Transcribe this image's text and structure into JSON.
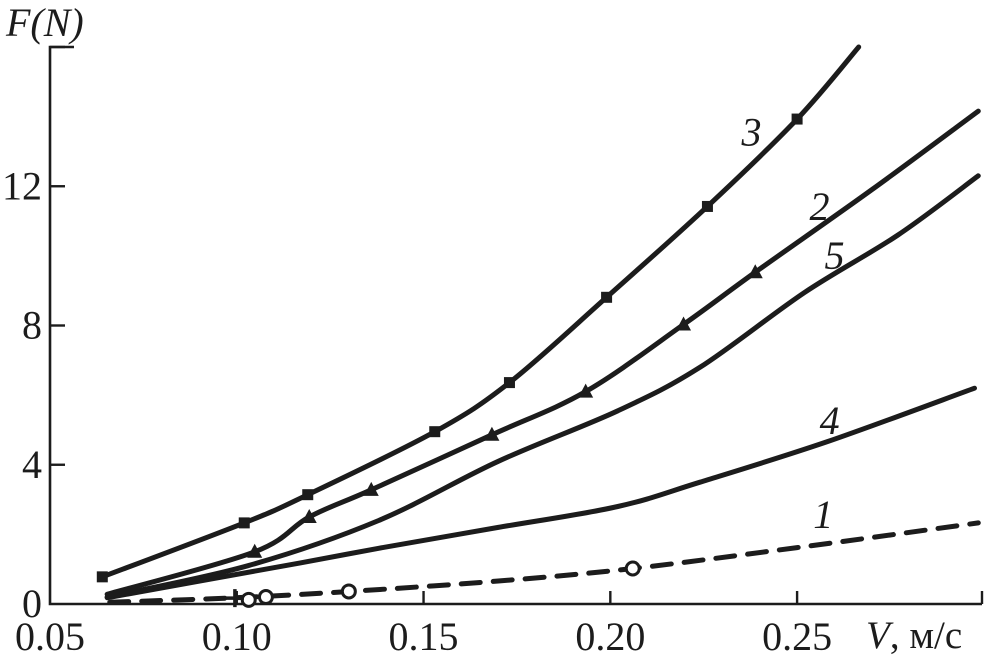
{
  "figure": {
    "background": "#ffffff",
    "ink_color": "#1c1c1c"
  },
  "chart_data": {
    "type": "line",
    "title": "",
    "xlabel": "V, м/с",
    "ylabel": "F(N)",
    "xlim": [
      0.05,
      0.2995
    ],
    "ylim": [
      0,
      16
    ],
    "grid": false,
    "legend_position": "none",
    "x_ticks": [
      {
        "value": 0.05,
        "label": "0.05",
        "tick_line": false
      },
      {
        "value": 0.1,
        "label": "0.10",
        "tick_line": true
      },
      {
        "value": 0.15,
        "label": "0.15",
        "tick_line": true
      },
      {
        "value": 0.2,
        "label": "0.20",
        "tick_line": true
      },
      {
        "value": 0.25,
        "label": "0.25",
        "tick_line": true
      },
      {
        "value": 0.2995,
        "label": "",
        "tick_line": true
      }
    ],
    "y_ticks": [
      {
        "value": 0,
        "label": "0",
        "tick_line": false
      },
      {
        "value": 4,
        "label": "4",
        "tick_line": true
      },
      {
        "value": 8,
        "label": "8",
        "tick_line": true
      },
      {
        "value": 12,
        "label": "12",
        "tick_line": true
      },
      {
        "value": 16,
        "label": "",
        "tick_line": true
      }
    ],
    "series": [
      {
        "id": "1",
        "label": "1",
        "label_pos": [
          0.257,
          2.55
        ],
        "line_style": "dashed",
        "marker": "open-circle",
        "points": [
          [
            0.066,
            0.05
          ],
          [
            0.1,
            0.18
          ],
          [
            0.13,
            0.36
          ],
          [
            0.17,
            0.66
          ],
          [
            0.206,
            1.02
          ],
          [
            0.25,
            1.62
          ],
          [
            0.2985,
            2.33
          ]
        ],
        "marker_points": [
          [
            0.1032,
            0.12
          ],
          [
            0.1078,
            0.2
          ],
          [
            0.13,
            0.36
          ],
          [
            0.206,
            1.02
          ]
        ],
        "extra_marker": {
          "shape": "plus",
          "points": [
            [
              0.0995,
              0.17
            ]
          ]
        }
      },
      {
        "id": "2",
        "label": "2",
        "label_pos": [
          0.256,
          11.4
        ],
        "line_style": "solid",
        "marker": "filled-triangle",
        "points": [
          [
            0.0653,
            0.28
          ],
          [
            0.1048,
            1.5
          ],
          [
            0.1194,
            2.5
          ],
          [
            0.136,
            3.28
          ],
          [
            0.1683,
            4.86
          ],
          [
            0.1934,
            6.1
          ],
          [
            0.2196,
            8.03
          ],
          [
            0.2388,
            9.53
          ],
          [
            0.27,
            11.9
          ],
          [
            0.2985,
            14.16
          ]
        ],
        "marker_points": [
          [
            0.1048,
            1.5
          ],
          [
            0.1194,
            2.5
          ],
          [
            0.136,
            3.28
          ],
          [
            0.1683,
            4.86
          ],
          [
            0.1934,
            6.1
          ],
          [
            0.2196,
            8.03
          ],
          [
            0.2388,
            9.53
          ]
        ]
      },
      {
        "id": "3",
        "label": "3",
        "label_pos": [
          0.2378,
          13.55
        ],
        "line_style": "solid",
        "marker": "filled-square",
        "points": [
          [
            0.064,
            0.78
          ],
          [
            0.102,
            2.33
          ],
          [
            0.119,
            3.14
          ],
          [
            0.153,
            4.95
          ],
          [
            0.173,
            6.36
          ],
          [
            0.199,
            8.81
          ],
          [
            0.226,
            11.42
          ],
          [
            0.25,
            13.93
          ],
          [
            0.2665,
            16.0
          ]
        ],
        "marker_points": [
          [
            0.064,
            0.78
          ],
          [
            0.102,
            2.33
          ],
          [
            0.119,
            3.14
          ],
          [
            0.153,
            4.95
          ],
          [
            0.173,
            6.36
          ],
          [
            0.199,
            8.81
          ],
          [
            0.226,
            11.42
          ],
          [
            0.25,
            13.93
          ]
        ]
      },
      {
        "id": "4",
        "label": "4",
        "label_pos": [
          0.2587,
          5.25
        ],
        "line_style": "solid",
        "marker": "none",
        "points": [
          [
            0.0653,
            0.18
          ],
          [
            0.117,
            1.18
          ],
          [
            0.138,
            1.6
          ],
          [
            0.17,
            2.2
          ],
          [
            0.202,
            2.8
          ],
          [
            0.224,
            3.5
          ],
          [
            0.258,
            4.66
          ],
          [
            0.2975,
            6.2
          ]
        ],
        "marker_points": []
      },
      {
        "id": "5",
        "label": "5",
        "label_pos": [
          0.26,
          10.0
        ],
        "line_style": "solid",
        "marker": "none",
        "points": [
          [
            0.0653,
            0.2
          ],
          [
            0.103,
            1.1
          ],
          [
            0.138,
            2.4
          ],
          [
            0.17,
            4.1
          ],
          [
            0.202,
            5.55
          ],
          [
            0.224,
            6.8
          ],
          [
            0.252,
            8.95
          ],
          [
            0.277,
            10.6
          ],
          [
            0.2985,
            12.3
          ]
        ],
        "marker_points": []
      }
    ]
  }
}
